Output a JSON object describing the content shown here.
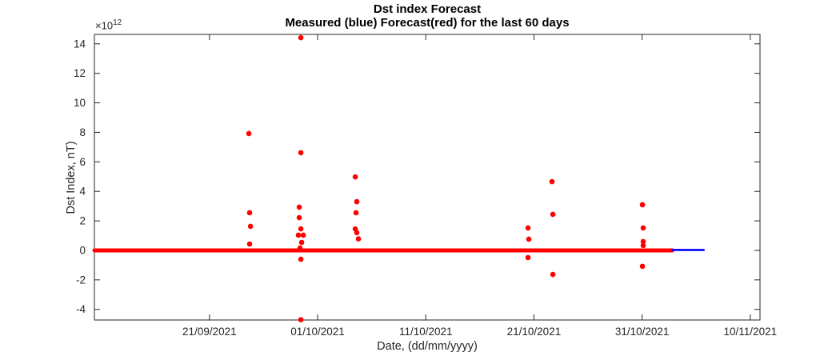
{
  "chart_data": {
    "type": "scatter",
    "title": "Dst index Forecast",
    "subtitle": "Measured (blue) Forecast(red) for the last 60 days",
    "grid": false,
    "legend": "none (colors described in subtitle)",
    "x_axis": {
      "label": "Date, (dd/mm/yyyy)",
      "tick_labels": [
        "21/09/2021",
        "01/10/2021",
        "11/10/2021",
        "21/10/2021",
        "31/10/2021",
        "10/11/2021"
      ],
      "tick_positions_days": [
        -10,
        0,
        10,
        20,
        30,
        40
      ],
      "epoch_day_zero": "01/10/2021",
      "range_days": [
        -20.64,
        40.9
      ]
    },
    "y_axis": {
      "label": "Dst Index, nT)",
      "multiplier_base": "×10",
      "multiplier_exp": "12",
      "ticks": [
        -4,
        -2,
        0,
        2,
        4,
        6,
        8,
        10,
        12,
        14
      ],
      "range": [
        -4.72,
        14.64
      ]
    },
    "frame_color": "#262626",
    "series": [
      {
        "name": "forecast-baseline",
        "legend_hint": "Forecast (red)",
        "type": "line",
        "color": "#ff0000",
        "line_width": 5,
        "points": [
          [
            -20.64,
            0
          ],
          [
            32.8,
            0
          ]
        ]
      },
      {
        "name": "measured-line",
        "legend_hint": "Measured (blue)",
        "type": "line",
        "color": "#0000ff",
        "line_width": 2.6,
        "points": [
          [
            32.8,
            0.03
          ],
          [
            35.7,
            0.03
          ]
        ]
      },
      {
        "name": "forecast-spikes",
        "legend_hint": "Forecast (red)",
        "type": "scatter",
        "color": "#ff0000",
        "marker_radius": 3.3,
        "points": [
          [
            -6.36,
            7.92
          ],
          [
            -6.29,
            2.55
          ],
          [
            -6.21,
            1.63
          ],
          [
            -6.29,
            0.43
          ],
          [
            -1.55,
            14.42
          ],
          [
            -1.55,
            6.62
          ],
          [
            -1.7,
            2.93
          ],
          [
            -1.7,
            2.22
          ],
          [
            -1.55,
            1.46
          ],
          [
            -1.78,
            1.03
          ],
          [
            -1.33,
            1.03
          ],
          [
            -1.48,
            0.54
          ],
          [
            -1.63,
            0.16
          ],
          [
            -1.55,
            -0.6
          ],
          [
            -1.55,
            -4.7
          ],
          [
            3.48,
            4.98
          ],
          [
            3.62,
            3.3
          ],
          [
            3.55,
            2.55
          ],
          [
            3.48,
            1.45
          ],
          [
            3.62,
            1.2
          ],
          [
            3.77,
            0.78
          ],
          [
            19.45,
            1.52
          ],
          [
            19.53,
            0.76
          ],
          [
            19.45,
            -0.49
          ],
          [
            21.67,
            4.66
          ],
          [
            21.75,
            2.44
          ],
          [
            21.75,
            -1.63
          ],
          [
            30.03,
            3.09
          ],
          [
            30.1,
            1.52
          ],
          [
            30.1,
            0.6
          ],
          [
            30.1,
            0.33
          ],
          [
            30.03,
            -1.08
          ]
        ]
      }
    ]
  }
}
